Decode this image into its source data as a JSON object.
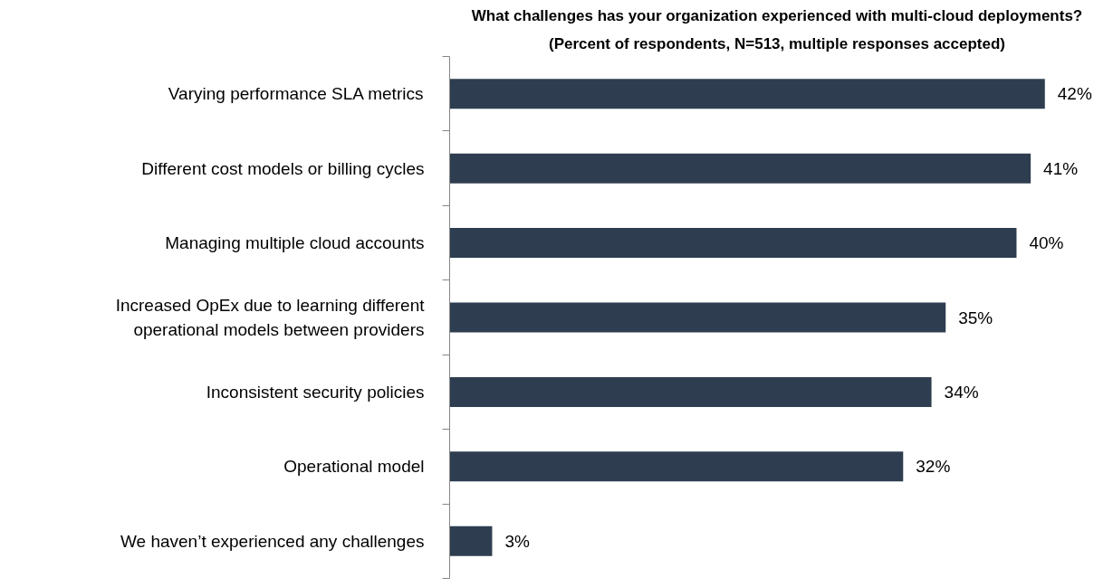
{
  "chart_data": {
    "type": "bar",
    "orientation": "horizontal",
    "title": "What challenges has your organization experienced with multi-cloud deployments?",
    "subtitle": "(Percent of respondents, N=513, multiple responses accepted)",
    "categories": [
      "Varying performance SLA metrics",
      "Different cost models or billing cycles",
      "Managing multiple cloud accounts",
      "Increased OpEx due to learning different\noperational models between providers",
      "Inconsistent security policies",
      "Operational model",
      "We haven’t experienced any challenges"
    ],
    "values": [
      42,
      41,
      40,
      35,
      34,
      32,
      3
    ],
    "value_labels": [
      "42%",
      "41%",
      "40%",
      "35%",
      "34%",
      "32%",
      "3%"
    ],
    "color": "#2e3e50",
    "grid": false,
    "tick_labels": "y"
  }
}
